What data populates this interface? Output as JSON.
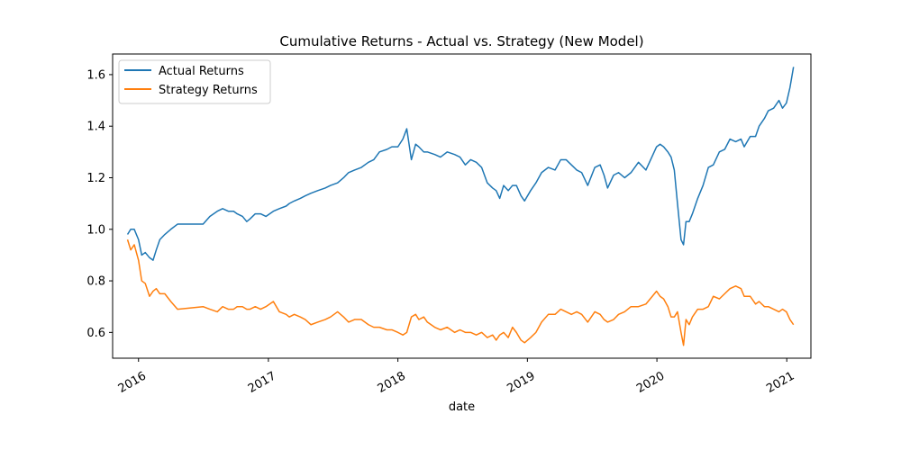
{
  "chart_data": {
    "type": "line",
    "title": "Cumulative Returns - Actual vs. Strategy (New Model)",
    "xlabel": "date",
    "ylabel": "",
    "xlim": [
      "2015-10-20",
      "2021-03-10"
    ],
    "ylim": [
      0.5,
      1.68
    ],
    "xticks": [
      "2016",
      "2017",
      "2018",
      "2019",
      "2020",
      "2021"
    ],
    "yticks": [
      0.6,
      0.8,
      1.0,
      1.2,
      1.4,
      1.6
    ],
    "ytick_labels": [
      "0.6",
      "0.8",
      "1.0",
      "1.2",
      "1.4",
      "1.6"
    ],
    "grid": false,
    "legend_position": "top-left",
    "series": [
      {
        "name": "Actual Returns",
        "color": "#1f77b4",
        "x": [
          "2015-12-01",
          "2015-12-10",
          "2015-12-20",
          "2016-01-01",
          "2016-01-10",
          "2016-01-20",
          "2016-02-01",
          "2016-02-11",
          "2016-02-20",
          "2016-03-01",
          "2016-03-15",
          "2016-04-01",
          "2016-04-20",
          "2016-07-01",
          "2016-07-20",
          "2016-08-10",
          "2016-08-25",
          "2016-09-10",
          "2016-09-25",
          "2016-10-05",
          "2016-10-20",
          "2016-11-01",
          "2016-11-10",
          "2016-11-25",
          "2016-12-10",
          "2016-12-25",
          "2017-01-15",
          "2017-02-01",
          "2017-02-20",
          "2017-03-01",
          "2017-03-15",
          "2017-04-01",
          "2017-04-15",
          "2017-05-01",
          "2017-05-20",
          "2017-06-10",
          "2017-06-25",
          "2017-07-15",
          "2017-08-01",
          "2017-08-15",
          "2017-09-01",
          "2017-09-20",
          "2017-10-10",
          "2017-10-25",
          "2017-11-10",
          "2017-12-01",
          "2017-12-15",
          "2018-01-01",
          "2018-01-15",
          "2018-01-26",
          "2018-02-08",
          "2018-02-20",
          "2018-03-01",
          "2018-03-15",
          "2018-03-25",
          "2018-04-15",
          "2018-05-01",
          "2018-05-20",
          "2018-06-10",
          "2018-06-25",
          "2018-07-10",
          "2018-07-25",
          "2018-08-10",
          "2018-08-25",
          "2018-09-10",
          "2018-09-25",
          "2018-10-05",
          "2018-10-15",
          "2018-10-26",
          "2018-11-08",
          "2018-11-20",
          "2018-12-01",
          "2018-12-14",
          "2018-12-24",
          "2019-01-10",
          "2019-01-25",
          "2019-02-10",
          "2019-03-01",
          "2019-03-20",
          "2019-04-05",
          "2019-04-20",
          "2019-05-05",
          "2019-05-20",
          "2019-06-03",
          "2019-06-20",
          "2019-07-10",
          "2019-07-25",
          "2019-08-05",
          "2019-08-15",
          "2019-09-01",
          "2019-09-15",
          "2019-10-02",
          "2019-10-20",
          "2019-11-10",
          "2019-12-01",
          "2019-12-31",
          "2020-01-10",
          "2020-01-20",
          "2020-02-01",
          "2020-02-10",
          "2020-02-19",
          "2020-02-28",
          "2020-03-09",
          "2020-03-16",
          "2020-03-23",
          "2020-04-01",
          "2020-04-10",
          "2020-04-25",
          "2020-05-10",
          "2020-05-25",
          "2020-06-08",
          "2020-06-25",
          "2020-07-10",
          "2020-07-25",
          "2020-08-10",
          "2020-08-25",
          "2020-09-03",
          "2020-09-20",
          "2020-10-05",
          "2020-10-15",
          "2020-10-30",
          "2020-11-10",
          "2020-11-25",
          "2020-12-10",
          "2020-12-20",
          "2020-12-31",
          "2021-01-10",
          "2021-01-20"
        ],
        "values": [
          0.98,
          1.0,
          1.0,
          0.96,
          0.9,
          0.91,
          0.89,
          0.88,
          0.92,
          0.96,
          0.98,
          1.0,
          1.02,
          1.02,
          1.05,
          1.07,
          1.08,
          1.07,
          1.07,
          1.06,
          1.05,
          1.03,
          1.04,
          1.06,
          1.06,
          1.05,
          1.07,
          1.08,
          1.09,
          1.1,
          1.11,
          1.12,
          1.13,
          1.14,
          1.15,
          1.16,
          1.17,
          1.18,
          1.2,
          1.22,
          1.23,
          1.24,
          1.26,
          1.27,
          1.3,
          1.31,
          1.32,
          1.32,
          1.35,
          1.39,
          1.27,
          1.33,
          1.32,
          1.3,
          1.3,
          1.29,
          1.28,
          1.3,
          1.29,
          1.28,
          1.25,
          1.27,
          1.26,
          1.24,
          1.18,
          1.16,
          1.15,
          1.12,
          1.17,
          1.15,
          1.17,
          1.17,
          1.13,
          1.11,
          1.15,
          1.18,
          1.22,
          1.24,
          1.23,
          1.27,
          1.27,
          1.25,
          1.23,
          1.22,
          1.17,
          1.24,
          1.25,
          1.21,
          1.16,
          1.21,
          1.22,
          1.2,
          1.22,
          1.26,
          1.23,
          1.32,
          1.33,
          1.32,
          1.3,
          1.28,
          1.23,
          1.1,
          0.96,
          0.94,
          1.03,
          1.03,
          1.06,
          1.12,
          1.17,
          1.24,
          1.25,
          1.3,
          1.31,
          1.35,
          1.34,
          1.35,
          1.32,
          1.36,
          1.36,
          1.4,
          1.43,
          1.46,
          1.47,
          1.5,
          1.47,
          1.49,
          1.55,
          1.63
        ]
      },
      {
        "name": "Strategy Returns",
        "color": "#ff7f0e",
        "x": [
          "2015-12-01",
          "2015-12-10",
          "2015-12-20",
          "2016-01-01",
          "2016-01-10",
          "2016-01-20",
          "2016-02-01",
          "2016-02-11",
          "2016-02-20",
          "2016-03-01",
          "2016-03-15",
          "2016-04-01",
          "2016-04-20",
          "2016-07-01",
          "2016-07-20",
          "2016-08-10",
          "2016-08-25",
          "2016-09-10",
          "2016-09-25",
          "2016-10-05",
          "2016-10-20",
          "2016-11-01",
          "2016-11-10",
          "2016-11-25",
          "2016-12-10",
          "2016-12-25",
          "2017-01-15",
          "2017-02-01",
          "2017-02-20",
          "2017-03-01",
          "2017-03-15",
          "2017-04-01",
          "2017-04-15",
          "2017-05-01",
          "2017-05-20",
          "2017-06-10",
          "2017-06-25",
          "2017-07-15",
          "2017-08-01",
          "2017-08-15",
          "2017-09-01",
          "2017-09-20",
          "2017-10-10",
          "2017-10-25",
          "2017-11-10",
          "2017-12-01",
          "2017-12-15",
          "2018-01-01",
          "2018-01-15",
          "2018-01-26",
          "2018-02-08",
          "2018-02-20",
          "2018-03-01",
          "2018-03-15",
          "2018-03-25",
          "2018-04-15",
          "2018-05-01",
          "2018-05-20",
          "2018-06-10",
          "2018-06-25",
          "2018-07-10",
          "2018-07-25",
          "2018-08-10",
          "2018-08-25",
          "2018-09-10",
          "2018-09-25",
          "2018-10-05",
          "2018-10-15",
          "2018-10-26",
          "2018-11-08",
          "2018-11-20",
          "2018-12-01",
          "2018-12-14",
          "2018-12-24",
          "2019-01-10",
          "2019-01-25",
          "2019-02-10",
          "2019-03-01",
          "2019-03-20",
          "2019-04-05",
          "2019-04-20",
          "2019-05-05",
          "2019-05-20",
          "2019-06-03",
          "2019-06-20",
          "2019-07-10",
          "2019-07-25",
          "2019-08-05",
          "2019-08-15",
          "2019-09-01",
          "2019-09-15",
          "2019-10-02",
          "2019-10-20",
          "2019-11-10",
          "2019-12-01",
          "2019-12-31",
          "2020-01-10",
          "2020-01-20",
          "2020-02-01",
          "2020-02-10",
          "2020-02-19",
          "2020-02-28",
          "2020-03-09",
          "2020-03-16",
          "2020-03-23",
          "2020-04-01",
          "2020-04-10",
          "2020-04-25",
          "2020-05-10",
          "2020-05-25",
          "2020-06-08",
          "2020-06-25",
          "2020-07-10",
          "2020-07-25",
          "2020-08-10",
          "2020-08-25",
          "2020-09-03",
          "2020-09-20",
          "2020-10-05",
          "2020-10-15",
          "2020-10-30",
          "2020-11-10",
          "2020-11-25",
          "2020-12-10",
          "2020-12-20",
          "2020-12-31",
          "2021-01-10",
          "2021-01-20"
        ],
        "values": [
          0.96,
          0.92,
          0.94,
          0.88,
          0.8,
          0.79,
          0.74,
          0.76,
          0.77,
          0.75,
          0.75,
          0.72,
          0.69,
          0.7,
          0.69,
          0.68,
          0.7,
          0.69,
          0.69,
          0.7,
          0.7,
          0.69,
          0.69,
          0.7,
          0.69,
          0.7,
          0.72,
          0.68,
          0.67,
          0.66,
          0.67,
          0.66,
          0.65,
          0.63,
          0.64,
          0.65,
          0.66,
          0.68,
          0.66,
          0.64,
          0.65,
          0.65,
          0.63,
          0.62,
          0.62,
          0.61,
          0.61,
          0.6,
          0.59,
          0.6,
          0.66,
          0.67,
          0.65,
          0.66,
          0.64,
          0.62,
          0.61,
          0.62,
          0.6,
          0.61,
          0.6,
          0.6,
          0.59,
          0.6,
          0.58,
          0.59,
          0.57,
          0.59,
          0.6,
          0.58,
          0.62,
          0.6,
          0.57,
          0.56,
          0.58,
          0.6,
          0.64,
          0.67,
          0.67,
          0.69,
          0.68,
          0.67,
          0.68,
          0.67,
          0.64,
          0.68,
          0.67,
          0.65,
          0.64,
          0.65,
          0.67,
          0.68,
          0.7,
          0.7,
          0.71,
          0.76,
          0.74,
          0.73,
          0.7,
          0.66,
          0.66,
          0.68,
          0.6,
          0.55,
          0.65,
          0.63,
          0.66,
          0.69,
          0.69,
          0.7,
          0.74,
          0.73,
          0.75,
          0.77,
          0.78,
          0.77,
          0.74,
          0.74,
          0.71,
          0.72,
          0.7,
          0.7,
          0.69,
          0.68,
          0.69,
          0.68,
          0.65,
          0.63
        ]
      }
    ]
  }
}
